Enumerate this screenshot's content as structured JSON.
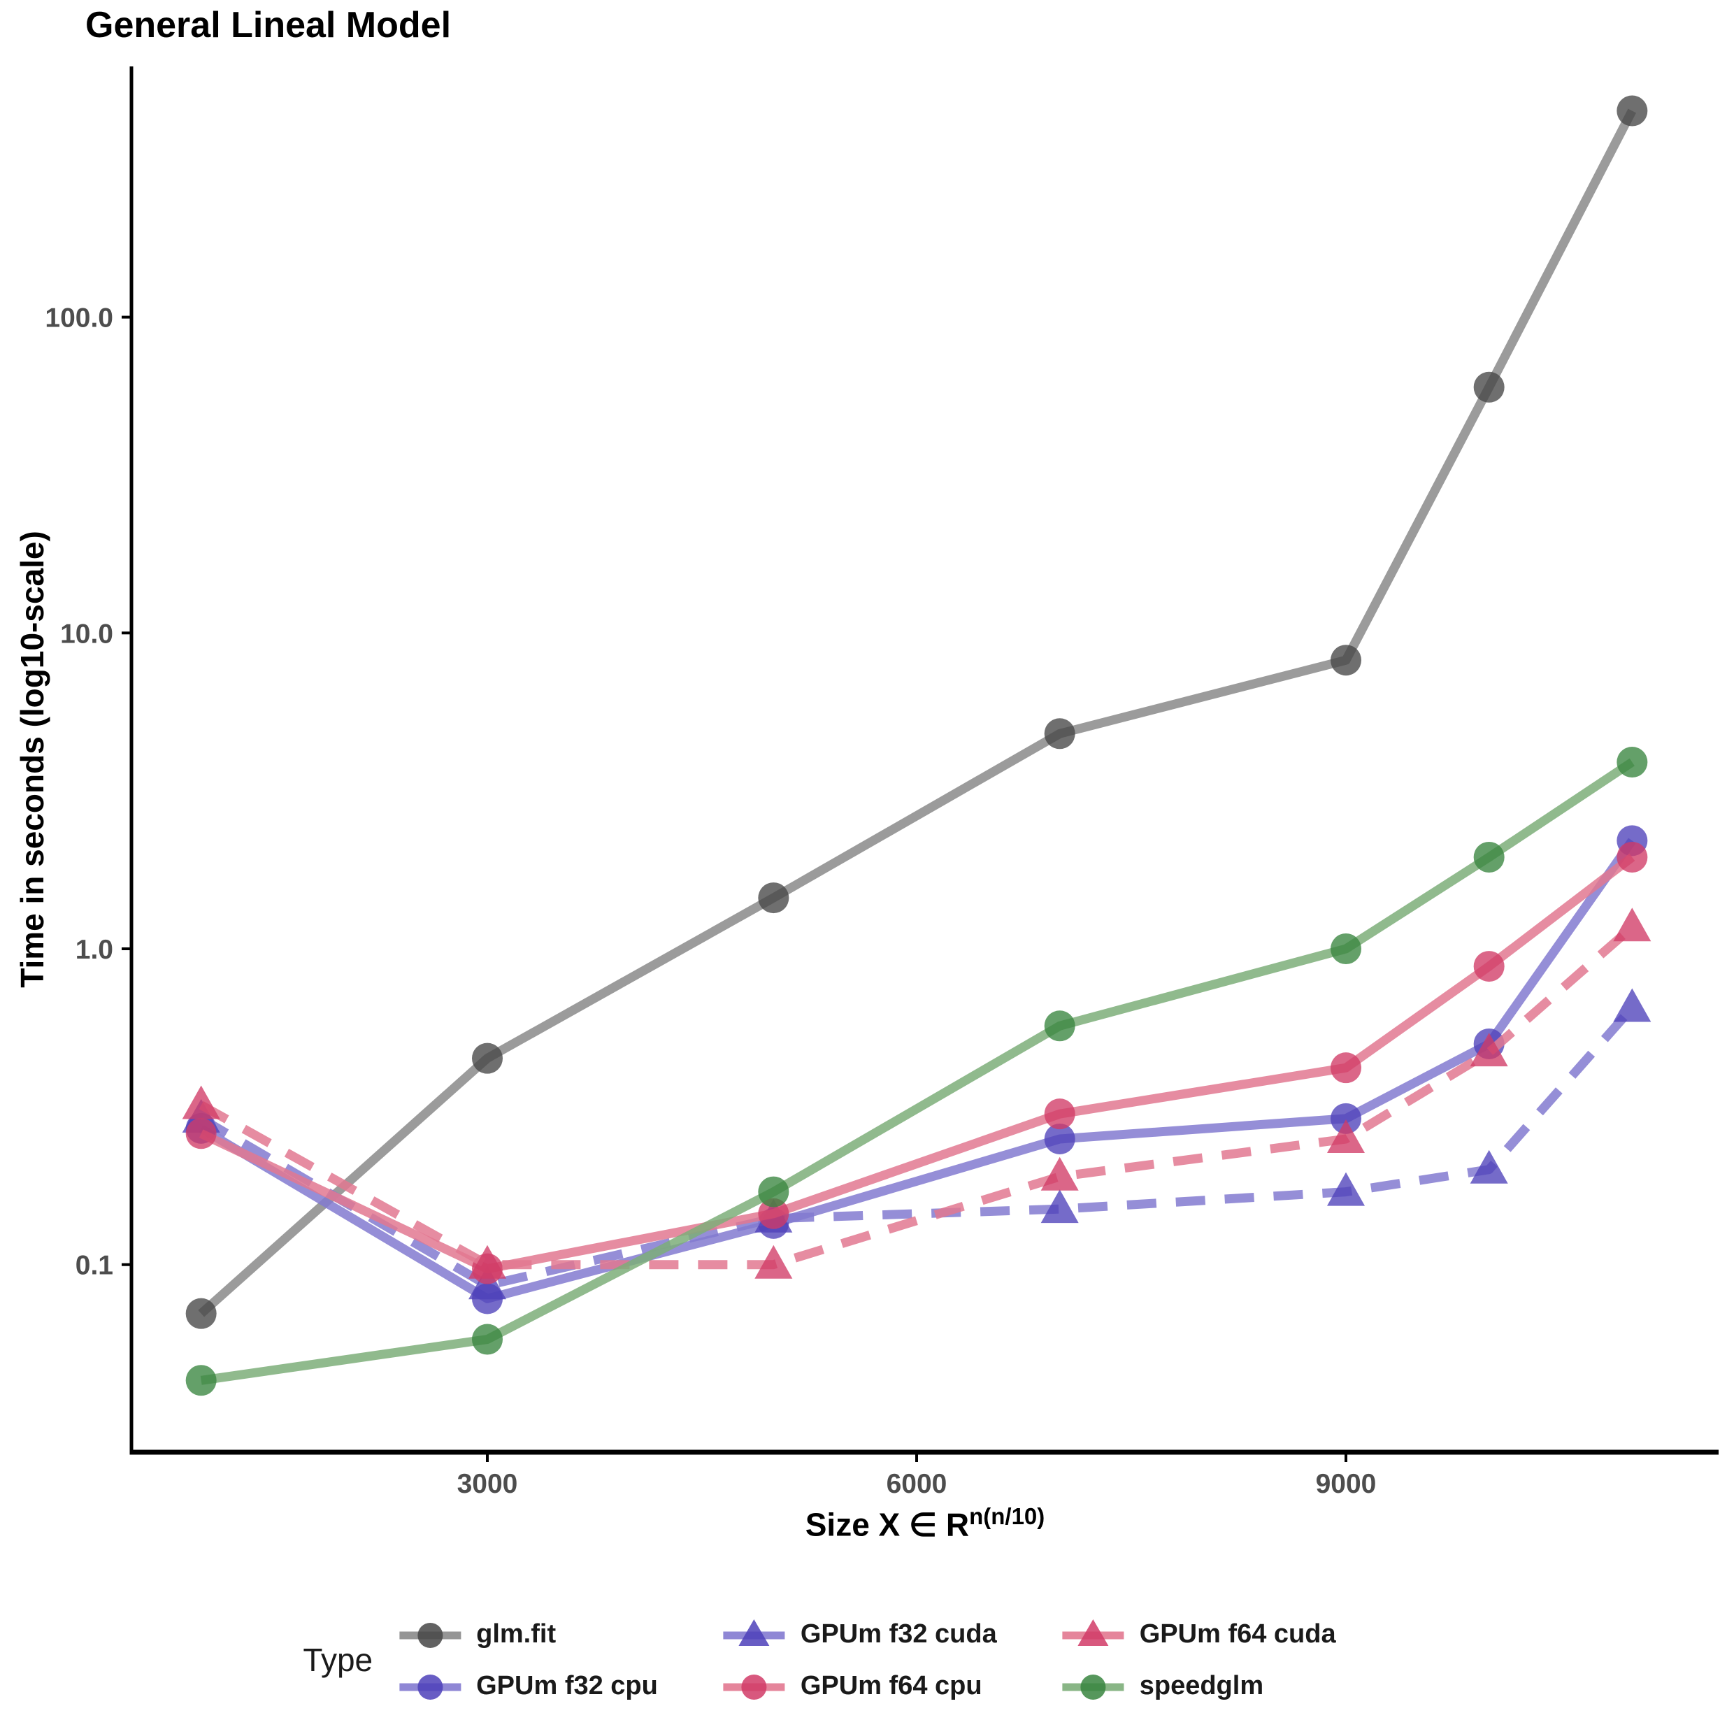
{
  "title": "General Lineal Model",
  "y_axis": {
    "title": "Time in seconds (log10-scale)",
    "ticks": [
      {
        "label": "100.0",
        "value": 100
      },
      {
        "label": "10.0",
        "value": 10
      },
      {
        "label": "1.0",
        "value": 1
      },
      {
        "label": "0.1",
        "value": 0.1
      }
    ]
  },
  "x_axis": {
    "title_prefix": "Size  X ∈ R",
    "title_superscript": "n(n/10)",
    "ticks": [
      {
        "label": "3000",
        "value": 3000
      },
      {
        "label": "6000",
        "value": 6000
      },
      {
        "label": "9000",
        "value": 9000
      }
    ]
  },
  "legend": {
    "title": "Type",
    "items": [
      {
        "label": "glm.fit",
        "series": 0
      },
      {
        "label": "GPUm f32 cpu",
        "series": 1
      },
      {
        "label": "GPUm f32 cuda",
        "series": 2
      },
      {
        "label": "GPUm f64 cpu",
        "series": 3
      },
      {
        "label": "GPUm f64 cuda",
        "series": 4
      },
      {
        "label": "speedglm",
        "series": 5
      }
    ]
  },
  "chart_data": {
    "type": "line",
    "x": [
      1000,
      3000,
      5000,
      7000,
      9000,
      10000,
      11000
    ],
    "series": [
      {
        "name": "glm.fit",
        "linetype": "solid",
        "marker": "circle",
        "line_color": "#8a8a8a",
        "marker_color": "#474747",
        "values": [
          0.07,
          0.45,
          1.45,
          4.8,
          8.2,
          60,
          450
        ]
      },
      {
        "name": "GPUm f32 cpu",
        "linetype": "solid",
        "marker": "circle",
        "line_color": "#837ad0",
        "marker_color": "#4e41ba",
        "values": [
          0.27,
          0.078,
          0.135,
          0.25,
          0.29,
          0.5,
          2.2
        ]
      },
      {
        "name": "GPUm f32 cuda",
        "linetype": "dashed",
        "marker": "triangle",
        "line_color": "#837ad0",
        "marker_color": "#4e41ba",
        "values": [
          0.29,
          0.086,
          0.14,
          0.15,
          0.17,
          0.2,
          0.65
        ]
      },
      {
        "name": "GPUm f64 cpu",
        "linetype": "solid",
        "marker": "circle",
        "line_color": "#e27890",
        "marker_color": "#d13b67",
        "values": [
          0.26,
          0.097,
          0.145,
          0.3,
          0.42,
          0.88,
          1.95
        ]
      },
      {
        "name": "GPUm f64 cuda",
        "linetype": "dashed",
        "marker": "triangle",
        "line_color": "#e27890",
        "marker_color": "#d13b67",
        "values": [
          0.32,
          0.1,
          0.1,
          0.19,
          0.25,
          0.47,
          1.17
        ]
      },
      {
        "name": "speedglm",
        "linetype": "solid",
        "marker": "circle",
        "line_color": "#7cae79",
        "marker_color": "#38853f",
        "values": [
          0.043,
          0.058,
          0.17,
          0.57,
          1.0,
          1.95,
          3.9
        ]
      }
    ],
    "title": "General Lineal Model",
    "xlabel": "Size X ∈ R^n(n/10)",
    "ylabel": "Time in seconds (log10-scale)",
    "yscale": "log10",
    "ylim": [
      0.025,
      700
    ],
    "xlim": [
      180,
      11600
    ],
    "grid": false,
    "legend_position": "bottom"
  }
}
